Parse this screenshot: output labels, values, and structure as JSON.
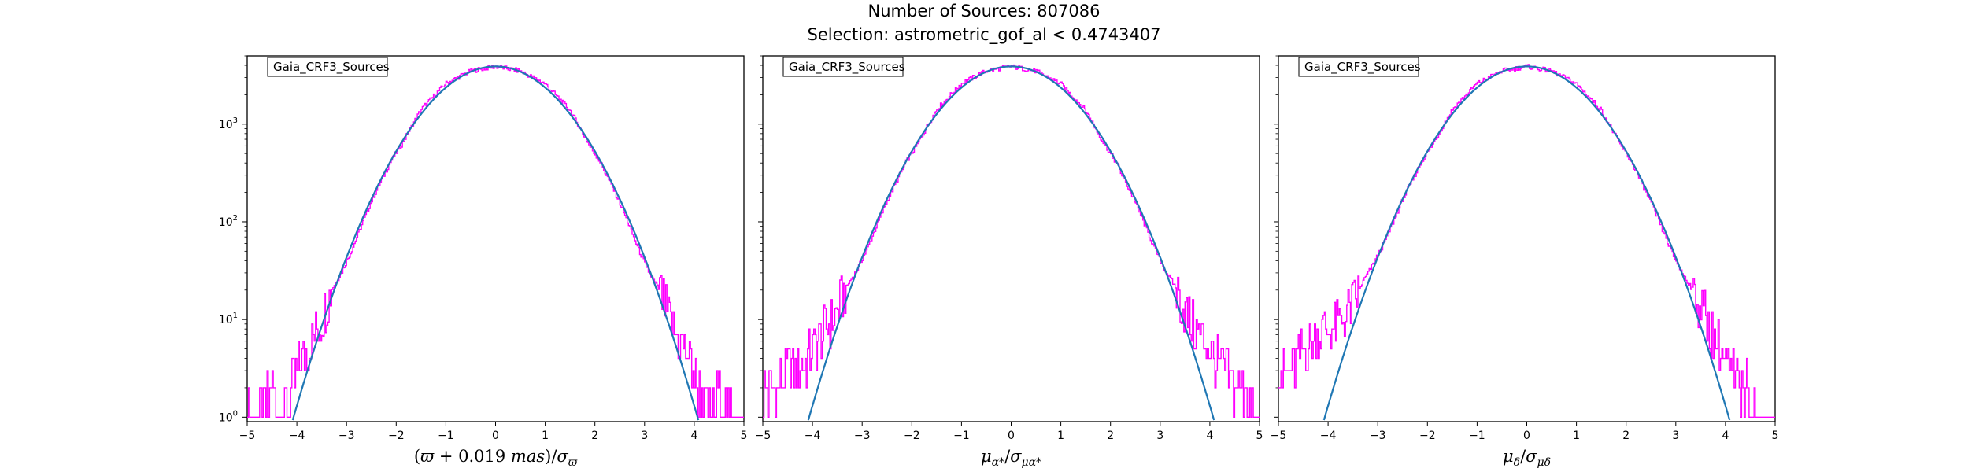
{
  "suptitle": {
    "line1": "Number of Sources: 807086",
    "line2": "Selection: astrometric_gof_al < 0.4743407"
  },
  "colors": {
    "histogram": "#ff00ff",
    "fit": "#1f77b4"
  },
  "chart_data": [
    {
      "type": "line",
      "legend": "Gaia_CRF3_Sources",
      "legend_placement": "upper-left",
      "xlabel": "(ϖ + 0.019 mas)/σ_ϖ",
      "xlim": [
        -5,
        5
      ],
      "ylim": [
        0.9,
        5000
      ],
      "yscale": "log",
      "xticks": [
        "−5",
        "−4",
        "−3",
        "−2",
        "−1",
        "0",
        "1",
        "2",
        "3",
        "4",
        "5"
      ],
      "yticks": [
        "10^0",
        "10^1",
        "10^2",
        "10^3"
      ],
      "grid": false,
      "series": [
        {
          "kind": "histogram-steps",
          "x": [
            -4.9,
            -4.7,
            -4.5,
            -4.3,
            -4.1,
            -3.9,
            -3.7,
            -3.5,
            -3.3,
            -3.1,
            -2.9,
            -2.7,
            -2.5,
            -2.3,
            -2.1,
            -1.9,
            -1.5,
            -1,
            -0.5,
            0,
            0.5,
            1,
            1.5,
            1.9,
            2.1,
            2.3,
            2.5,
            2.7,
            2.9,
            3.1,
            3.3,
            3.5,
            3.7,
            3.9,
            4.1,
            4.3,
            4.5,
            4.7,
            4.9
          ],
          "y": [
            1,
            1,
            2,
            1,
            2,
            4,
            6,
            10,
            20,
            30,
            50,
            90,
            160,
            260,
            420,
            600,
            1400,
            2600,
            3500,
            3900,
            3500,
            2600,
            1400,
            600,
            420,
            260,
            160,
            90,
            50,
            30,
            20,
            10,
            6,
            4,
            2,
            1,
            2,
            1,
            1
          ]
        },
        {
          "kind": "fit",
          "amplitude": 3900,
          "center": 0,
          "sigma": 1.0
        }
      ]
    },
    {
      "type": "line",
      "legend": "Gaia_CRF3_Sources",
      "legend_placement": "upper-left",
      "xlabel": "μα*/σμα*",
      "xlim": [
        -5,
        5
      ],
      "ylim": [
        0.9,
        5000
      ],
      "yscale": "log",
      "xticks": [
        "−5",
        "−4",
        "−3",
        "−2",
        "−1",
        "0",
        "1",
        "2",
        "3",
        "4",
        "5"
      ],
      "grid": false,
      "series": [
        {
          "kind": "histogram-steps",
          "x": [
            -4.9,
            -4.7,
            -4.5,
            -4.3,
            -4.1,
            -3.9,
            -3.7,
            -3.5,
            -3.3,
            -3.1,
            -2.9,
            -2.7,
            -2.5,
            -2.3,
            -2.1,
            -1.9,
            -1.5,
            -1,
            -0.5,
            0,
            0.5,
            1,
            1.5,
            1.9,
            2.1,
            2.3,
            2.5,
            2.7,
            2.9,
            3.1,
            3.3,
            3.5,
            3.7,
            3.9,
            4.1,
            4.3,
            4.5,
            4.7,
            4.9
          ],
          "y": [
            2,
            2,
            3,
            3,
            4,
            6,
            8,
            12,
            22,
            32,
            52,
            92,
            160,
            260,
            420,
            600,
            1400,
            2600,
            3500,
            3900,
            3500,
            2600,
            1400,
            600,
            420,
            260,
            160,
            92,
            52,
            32,
            22,
            12,
            8,
            6,
            4,
            3,
            2,
            2,
            1
          ]
        },
        {
          "kind": "fit",
          "amplitude": 3900,
          "center": 0,
          "sigma": 1.0
        }
      ]
    },
    {
      "type": "line",
      "legend": "Gaia_CRF3_Sources",
      "legend_placement": "upper-left",
      "xlabel": "μδ/σμδ",
      "xlim": [
        -5,
        5
      ],
      "ylim": [
        0.9,
        5000
      ],
      "yscale": "log",
      "xticks": [
        "−5",
        "−4",
        "−3",
        "−2",
        "−1",
        "0",
        "1",
        "2",
        "3",
        "4",
        "5"
      ],
      "grid": false,
      "series": [
        {
          "kind": "histogram-steps",
          "x": [
            -4.9,
            -4.7,
            -4.5,
            -4.3,
            -4.1,
            -3.9,
            -3.7,
            -3.5,
            -3.3,
            -3.1,
            -2.9,
            -2.7,
            -2.5,
            -2.3,
            -2.1,
            -1.9,
            -1.5,
            -1,
            -0.5,
            0,
            0.5,
            1,
            1.5,
            1.9,
            2.1,
            2.3,
            2.5,
            2.7,
            2.9,
            3.1,
            3.3,
            3.5,
            3.7,
            3.9,
            4.1,
            4.3,
            4.5,
            4.7,
            4.9
          ],
          "y": [
            3,
            3,
            5,
            6,
            8,
            8,
            10,
            14,
            24,
            36,
            56,
            95,
            165,
            265,
            425,
            605,
            1400,
            2600,
            3500,
            3900,
            3500,
            2600,
            1400,
            600,
            420,
            260,
            160,
            92,
            52,
            32,
            22,
            14,
            8,
            5,
            3,
            2,
            2,
            1,
            1
          ]
        },
        {
          "kind": "fit",
          "amplitude": 3900,
          "center": 0,
          "sigma": 1.0
        }
      ]
    }
  ]
}
